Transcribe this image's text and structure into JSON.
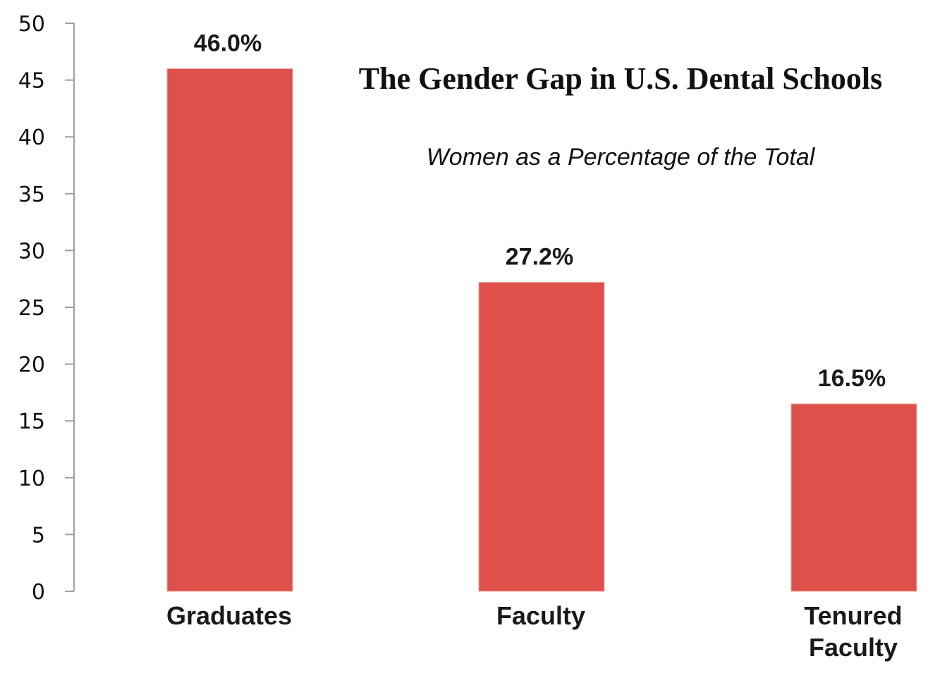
{
  "chart_data": {
    "type": "bar",
    "title": "The Gender Gap in U.S. Dental Schools",
    "subtitle": "Women as a Percentage of the Total",
    "categories": [
      "Graduates",
      "Faculty",
      "Tenured Faculty"
    ],
    "category_lines": [
      [
        "Graduates"
      ],
      [
        "Faculty"
      ],
      [
        "Tenured",
        "Faculty"
      ]
    ],
    "values": [
      46.0,
      27.2,
      16.5
    ],
    "data_labels": [
      "46.0%",
      "27.2%",
      "16.5%"
    ],
    "xlabel": "",
    "ylabel": "",
    "ylim": [
      0,
      50
    ],
    "yticks": [
      0,
      5,
      10,
      15,
      20,
      25,
      30,
      35,
      40,
      45,
      50
    ],
    "grid": false,
    "legend": "none",
    "bar_color": "#DE504A",
    "axis_color": "#A0A0A0"
  }
}
